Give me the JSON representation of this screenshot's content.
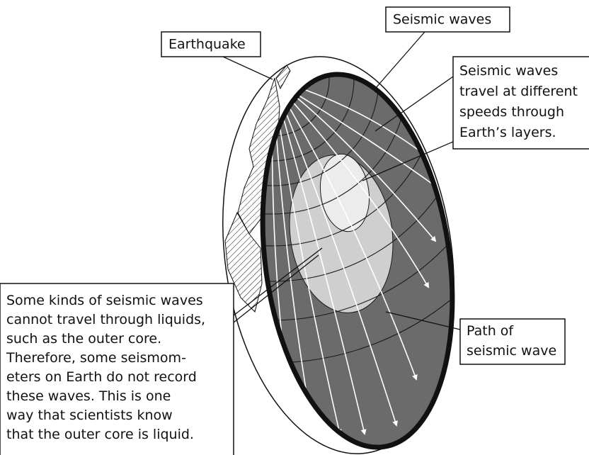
{
  "labels": {
    "seismic_waves": "Seismic waves",
    "earthquake": "Earthquake",
    "travel_note": [
      "Seismic waves",
      "travel at different",
      "speeds through",
      "Earth’s layers."
    ],
    "liquid_note": [
      "Some kinds of seismic waves",
      "cannot travel through liquids,",
      "such as the outer core.",
      "Therefore, some seismom-",
      "eters on Earth do not record",
      "these waves. This is one",
      "way that scientists know",
      "that the outer core is liquid."
    ],
    "path_note": [
      "Path of",
      "seismic wave"
    ]
  }
}
